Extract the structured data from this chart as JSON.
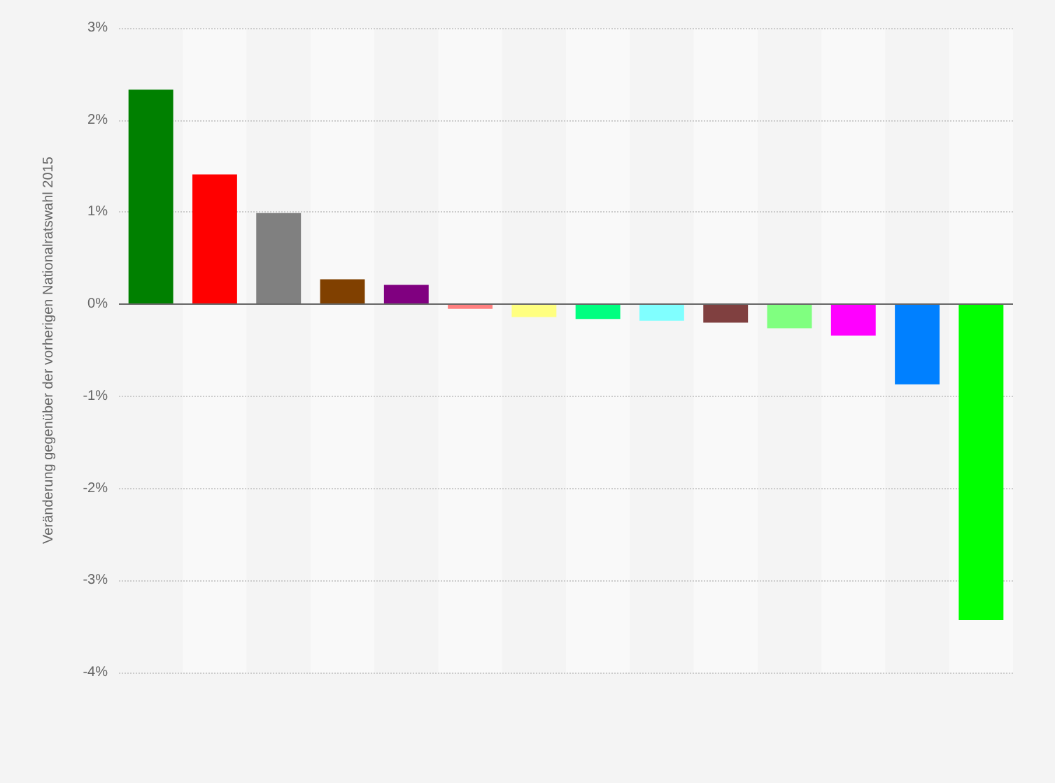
{
  "chart_data": {
    "type": "bar",
    "ylabel": "Veränderung gegenüber der vorherigen Nationalratswahl 2015",
    "categories": [
      null,
      null,
      null,
      null,
      null,
      null,
      null,
      null,
      null,
      null,
      null,
      null,
      null,
      null
    ],
    "values": [
      2.33,
      1.41,
      0.99,
      0.27,
      0.21,
      -0.05,
      -0.14,
      -0.16,
      -0.18,
      -0.2,
      -0.26,
      -0.34,
      -0.87,
      -3.43
    ],
    "colors": [
      "#008000",
      "#ff0000",
      "#808080",
      "#804000",
      "#800080",
      "#ff8080",
      "#ffff80",
      "#00ff80",
      "#80ffff",
      "#804040",
      "#80ff80",
      "#ff00ff",
      "#0080ff",
      "#00ff00"
    ],
    "ylim": [
      -4,
      3
    ],
    "yticks": [
      {
        "value": -4,
        "label": "-4%"
      },
      {
        "value": -3,
        "label": "-3%"
      },
      {
        "value": -2,
        "label": "-2%"
      },
      {
        "value": -1,
        "label": "-1%"
      },
      {
        "value": 0,
        "label": "0%"
      },
      {
        "value": 1,
        "label": "1%"
      },
      {
        "value": 2,
        "label": "2%"
      },
      {
        "value": 3,
        "label": "3%"
      }
    ],
    "grid": "y"
  }
}
